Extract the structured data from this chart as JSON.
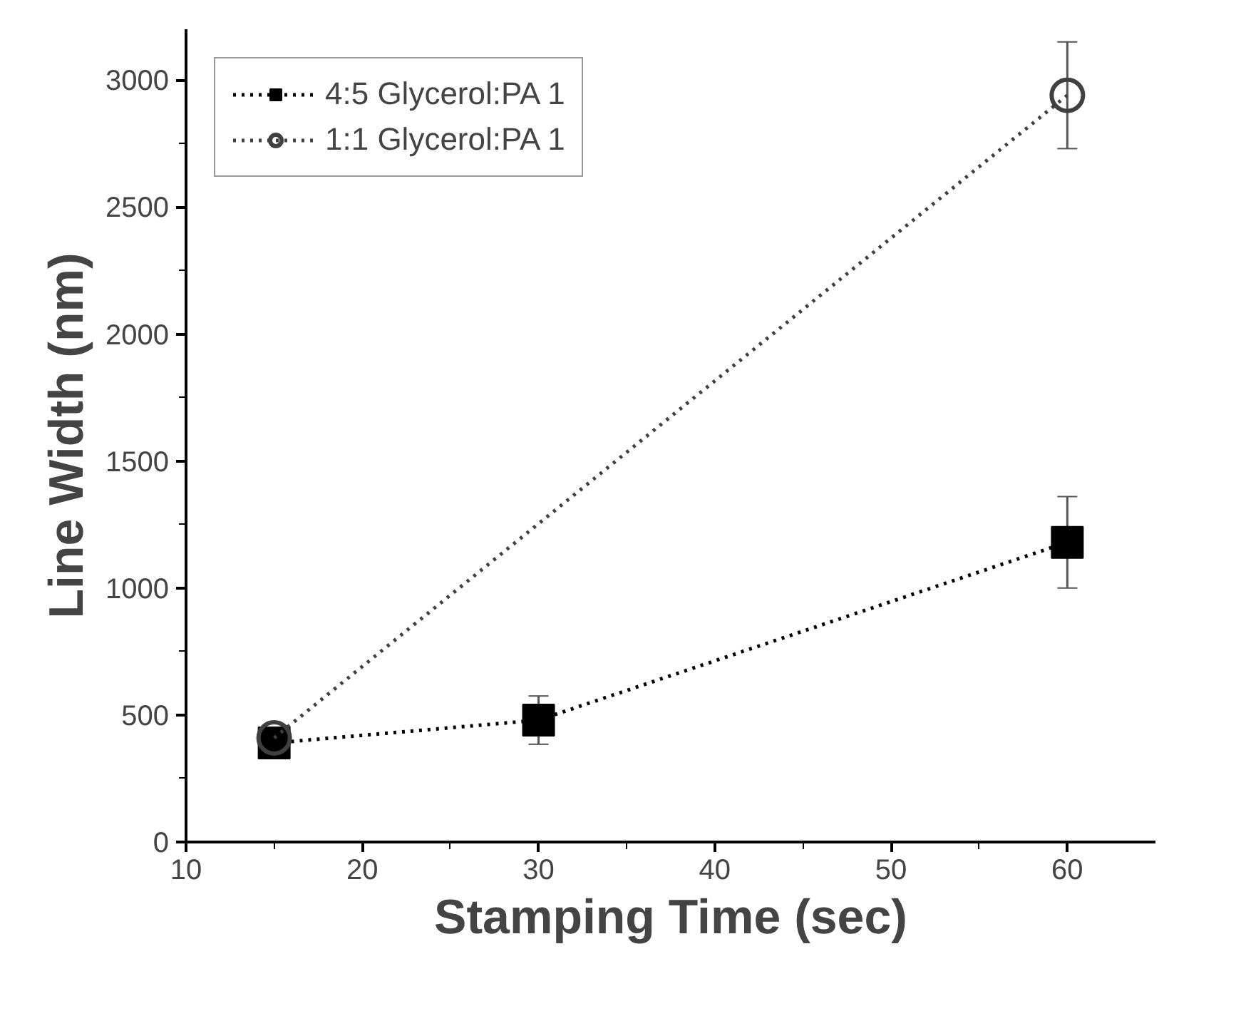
{
  "chart_data": {
    "type": "line",
    "xlabel": "Stamping Time (sec)",
    "ylabel": "Line Width (nm)",
    "xlim": [
      10,
      65
    ],
    "ylim": [
      0,
      3200
    ],
    "xticks": [
      10,
      {
        "value": 15,
        "label": null
      },
      20,
      {
        "value": 25,
        "label": null
      },
      30,
      {
        "value": 35,
        "label": null
      },
      40,
      {
        "value": 45,
        "label": null
      },
      50,
      {
        "value": 55,
        "label": null
      },
      60
    ],
    "yticks": [
      0,
      {
        "value": 250,
        "label": null
      },
      500,
      {
        "value": 750,
        "label": null
      },
      1000,
      {
        "value": 1250,
        "label": null
      },
      1500,
      {
        "value": 1750,
        "label": null
      },
      2000,
      {
        "value": 2250,
        "label": null
      },
      2500,
      {
        "value": 2750,
        "label": null
      },
      3000
    ],
    "legend": "top left",
    "line_style": "dotted",
    "grid": false,
    "series": [
      {
        "name": "4:5 Glycerol:PA 1",
        "color": "#000000",
        "marker": "square",
        "x": [
          15,
          30,
          60
        ],
        "values": [
          390,
          480,
          1180
        ],
        "errors": [
          null,
          95,
          180
        ]
      },
      {
        "name": "1:1 Glycerol:PA 1",
        "color": "#404040",
        "marker": "circle",
        "x": [
          15,
          60
        ],
        "values": [
          410,
          2940
        ],
        "errors": [
          null,
          210
        ]
      }
    ]
  }
}
